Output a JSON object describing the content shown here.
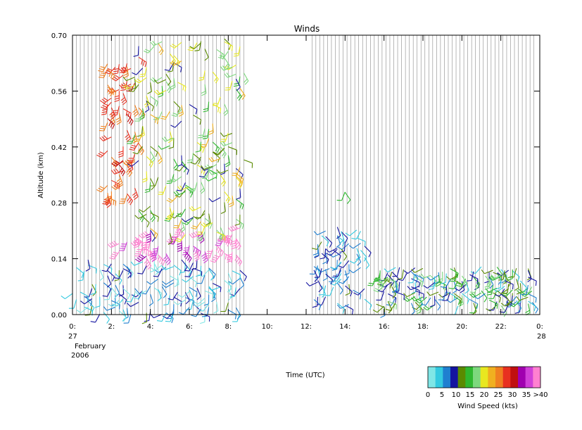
{
  "chart_data": {
    "type": "wind-barb",
    "title": "Winds",
    "xlabel": "Time (UTC)",
    "ylabel": "Altitude (km)",
    "x_range": [
      0,
      24
    ],
    "y_range": [
      0.0,
      0.7
    ],
    "x_ticks": [
      {
        "v": 0,
        "label": "0:"
      },
      {
        "v": 2,
        "label": "2:"
      },
      {
        "v": 4,
        "label": "4:"
      },
      {
        "v": 6,
        "label": "6:"
      },
      {
        "v": 8,
        "label": "8:"
      },
      {
        "v": 10,
        "label": "10:"
      },
      {
        "v": 12,
        "label": "12:"
      },
      {
        "v": 14,
        "label": "14:"
      },
      {
        "v": 16,
        "label": "16:"
      },
      {
        "v": 18,
        "label": "18:"
      },
      {
        "v": 20,
        "label": "20:"
      },
      {
        "v": 22,
        "label": "22:"
      },
      {
        "v": 24,
        "label": "0:"
      }
    ],
    "y_ticks": [
      {
        "v": 0.0,
        "label": "0.00"
      },
      {
        "v": 0.14,
        "label": "0.14"
      },
      {
        "v": 0.28,
        "label": "0.28"
      },
      {
        "v": 0.42,
        "label": "0.42"
      },
      {
        "v": 0.56,
        "label": "0.56"
      },
      {
        "v": 0.7,
        "label": "0.70"
      }
    ],
    "date_labels": {
      "start_day": "27",
      "end_day": "28",
      "month": "February",
      "year": "2006"
    },
    "profile_times_segments": [
      {
        "start": 0.0,
        "end": 8.8,
        "step": 0.2
      },
      {
        "start": 12.3,
        "end": 23.7,
        "step": 0.2
      }
    ],
    "legend": {
      "title": "Wind Speed (kts)",
      "tick_labels": [
        "0",
        "5",
        "10",
        "15",
        "20",
        "25",
        "30",
        "35",
        ">40"
      ],
      "colors": [
        "#7fe6e6",
        "#33c9e0",
        "#1f7fd0",
        "#1414a0",
        "#5a8a00",
        "#2fb82f",
        "#7dd87d",
        "#e8e820",
        "#f0b020",
        "#f08020",
        "#e83020",
        "#c01010",
        "#a000b0",
        "#d040d8",
        "#ff80d0"
      ]
    },
    "barb_groups": [
      {
        "x": [
          0.0,
          8.8
        ],
        "y": [
          0.0,
          0.14
        ],
        "speed": [
          0,
          12
        ],
        "n": 140
      },
      {
        "x": [
          2.3,
          8.6
        ],
        "y": [
          0.14,
          0.22
        ],
        "speed": [
          36,
          45
        ],
        "n": 45
      },
      {
        "x": [
          1.7,
          3.4
        ],
        "y": [
          0.28,
          0.66
        ],
        "speed": [
          26,
          32
        ],
        "n": 60
      },
      {
        "x": [
          3.0,
          8.8
        ],
        "y": [
          0.2,
          0.7
        ],
        "speed": [
          10,
          24
        ],
        "n": 180
      },
      {
        "x": [
          12.3,
          15.0
        ],
        "y": [
          0.02,
          0.22
        ],
        "speed": [
          4,
          12
        ],
        "n": 70
      },
      {
        "x": [
          15.5,
          23.7
        ],
        "y": [
          0.02,
          0.12
        ],
        "speed": [
          4,
          18
        ],
        "n": 170
      },
      {
        "x": [
          13.9,
          14.1
        ],
        "y": [
          0.3,
          0.34
        ],
        "speed": [
          14,
          16
        ],
        "n": 2
      }
    ]
  }
}
